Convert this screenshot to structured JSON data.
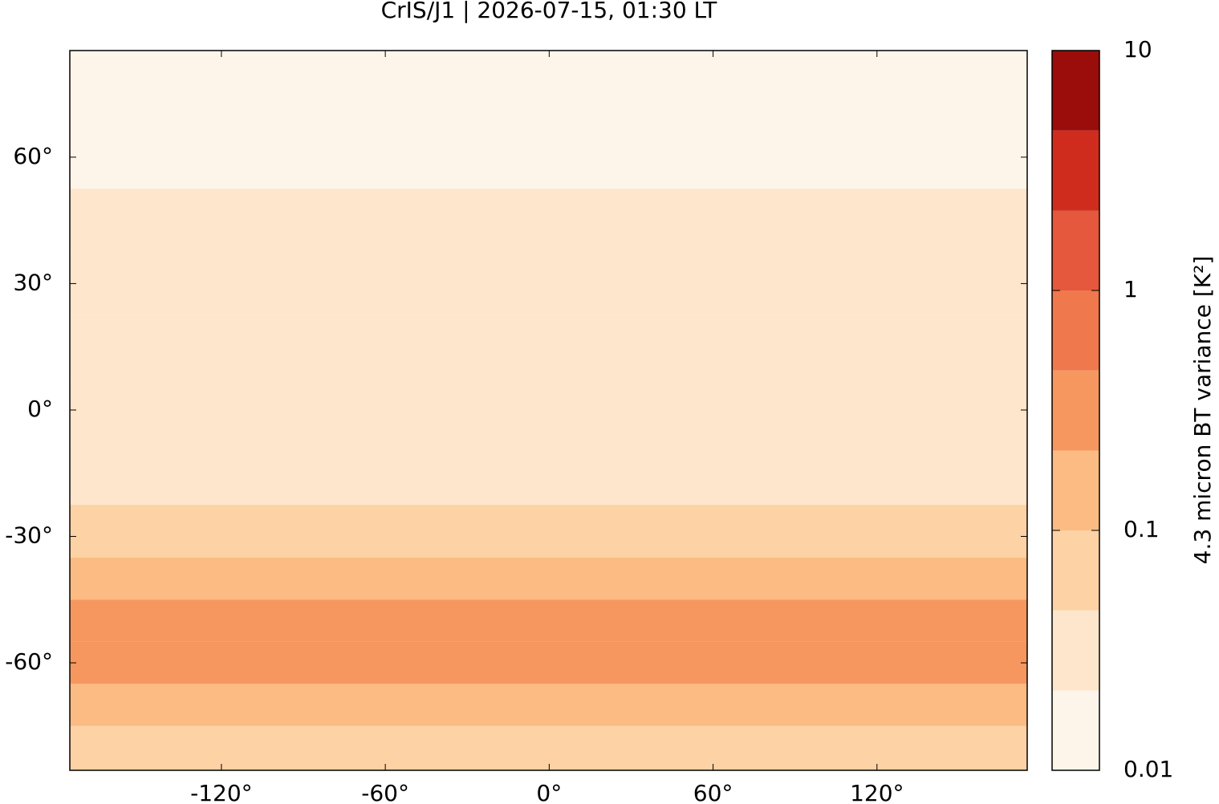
{
  "chart_data": {
    "type": "map",
    "title": "CrIS/J1 | 2026-07-15, 01:30 LT",
    "xlim": [
      -175.5,
      175
    ],
    "ylim": [
      -85.5,
      85.3
    ],
    "xticks": [
      {
        "value": -120,
        "label": "-120°"
      },
      {
        "value": -60,
        "label": "-60°"
      },
      {
        "value": 0,
        "label": "0°"
      },
      {
        "value": 60,
        "label": "60°"
      },
      {
        "value": 120,
        "label": "120°"
      }
    ],
    "yticks": [
      {
        "value": -60,
        "label": "-60°"
      },
      {
        "value": -30,
        "label": "-30°"
      },
      {
        "value": 0,
        "label": "0°"
      },
      {
        "value": 30,
        "label": "30°"
      },
      {
        "value": 60,
        "label": "60°"
      }
    ],
    "field": {
      "lat": [
        80,
        70,
        60,
        45,
        30,
        15,
        0,
        -15,
        -30,
        -40,
        -50,
        -60,
        -70,
        -80
      ],
      "values": [
        0.012,
        0.014,
        0.016,
        0.025,
        0.03,
        0.03,
        0.03,
        0.035,
        0.06,
        0.2,
        0.35,
        0.4,
        0.15,
        0.05
      ]
    },
    "colorbar": {
      "label": "4.3 micron BT variance [K²]",
      "log": true,
      "lim": [
        0.01,
        10
      ],
      "ticks": [
        0.01,
        0.1,
        1,
        10
      ],
      "levels": [
        0.01,
        0.0215,
        0.0464,
        0.1,
        0.215,
        0.464,
        1,
        2.15,
        4.64,
        10
      ],
      "colors": [
        "#fef5ea",
        "#fde6cc",
        "#fdd2a4",
        "#fbbb82",
        "#f6975f",
        "#f0784d",
        "#e5583d",
        "#d02c1d",
        "#9b0d0a"
      ]
    }
  }
}
